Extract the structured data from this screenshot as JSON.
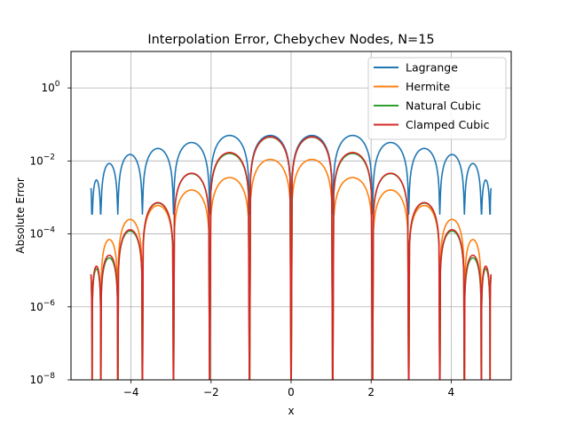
{
  "chart_data": {
    "type": "line",
    "title": "Interpolation Error, Chebychev Nodes, N=15",
    "xlabel": "x",
    "ylabel": "Absolute Error",
    "xlim": [
      -5.5,
      5.5
    ],
    "ylim": [
      1e-08,
      10
    ],
    "yscale": "log",
    "grid": true,
    "legend_position": "upper right",
    "x_ticks": [
      -4,
      -2,
      0,
      2,
      4
    ],
    "x_tick_labels": [
      "−4",
      "−2",
      "0",
      "2",
      "4"
    ],
    "y_ticks": [
      1e-08,
      1e-06,
      0.0001,
      0.01,
      1
    ],
    "y_tick_labels": [
      {
        "base": "10",
        "exp": "−8"
      },
      {
        "base": "10",
        "exp": "−6"
      },
      {
        "base": "10",
        "exp": "−4"
      },
      {
        "base": "10",
        "exp": "−2"
      },
      {
        "base": "10",
        "exp": "0"
      }
    ],
    "nodes_x": [
      -4.9726,
      -4.7553,
      -4.3301,
      -3.7157,
      -2.9389,
      -2.0337,
      -1.0396,
      0.0,
      1.0396,
      2.0337,
      2.9389,
      3.7157,
      4.3301,
      4.7553,
      4.9726
    ],
    "series": [
      {
        "name": "Lagrange",
        "color": "#1f77b4",
        "peaks": [
          0.003,
          0.0085,
          0.015,
          0.022,
          0.032,
          0.05,
          0.05,
          0.05,
          0.05,
          0.032,
          0.022,
          0.015,
          0.0085,
          0.003
        ],
        "floor": 0.00035
      },
      {
        "name": "Hermite",
        "color": "#ff7f0e",
        "peaks": [
          1.3e-05,
          7e-05,
          0.00025,
          0.0006,
          0.0016,
          0.0035,
          0.011,
          0.011,
          0.0035,
          0.0016,
          0.0006,
          0.00025,
          7e-05,
          1.3e-05
        ],
        "floor": 1e-09
      },
      {
        "name": "Natural Cubic",
        "color": "#2ca02c",
        "peaks": [
          1.1e-05,
          2.2e-05,
          0.00012,
          0.0007,
          0.0045,
          0.016,
          0.045,
          0.045,
          0.016,
          0.0045,
          0.0007,
          0.00012,
          2.2e-05,
          1.1e-05
        ],
        "floor": 1e-09
      },
      {
        "name": "Clamped Cubic",
        "color": "#d62728",
        "peaks": [
          1.3e-05,
          2.6e-05,
          0.00013,
          0.00072,
          0.0046,
          0.017,
          0.046,
          0.046,
          0.017,
          0.0046,
          0.00072,
          0.00013,
          2.6e-05,
          1.3e-05
        ],
        "floor": 1e-09
      }
    ]
  }
}
